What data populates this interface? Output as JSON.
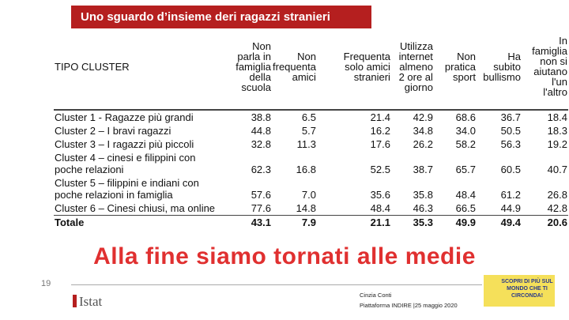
{
  "header": {
    "title": "Uno sguardo d’insieme deri ragazzi stranieri"
  },
  "table": {
    "columns": [
      [
        "TIPO CLUSTER"
      ],
      [
        "Non",
        "parla in",
        "famiglia",
        "della",
        "scuola"
      ],
      [
        "Non",
        "frequenta",
        "amici"
      ],
      [
        "Frequenta",
        "solo amici",
        "stranieri"
      ],
      [
        "Utilizza",
        "internet",
        "almeno",
        "2 ore al",
        "giorno"
      ],
      [
        "Non",
        "pratica",
        "sport"
      ],
      [
        "Ha",
        "subito",
        "bullismo"
      ],
      [
        "In",
        "famiglia",
        "non si",
        "aiutano",
        "l'un",
        "l'altro"
      ]
    ],
    "rows": [
      [
        "Cluster 1  - Ragazze più grandi",
        "38.8",
        "6.5",
        "21.4",
        "42.9",
        "68.6",
        "36.7",
        "18.4"
      ],
      [
        "Cluster 2 – I bravi ragazzi",
        "44.8",
        "5.7",
        "16.2",
        "34.8",
        "34.0",
        "50.5",
        "18.3"
      ],
      [
        "Cluster 3 – I ragazzi più piccoli",
        "32.8",
        "11.3",
        "17.6",
        "26.2",
        "58.2",
        "56.3",
        "19.2"
      ],
      [
        "Cluster 4 – cinesi e filippini con poche relazioni",
        "62.3",
        "16.8",
        "52.5",
        "38.7",
        "65.7",
        "60.5",
        "40.7"
      ],
      [
        "Cluster 5 – filippini e indiani con poche relazioni in famiglia",
        "57.6",
        "7.0",
        "35.6",
        "35.8",
        "48.4",
        "61.2",
        "26.8"
      ],
      [
        "Cluster 6 – Cinesi chiusi, ma online",
        "77.6",
        "14.8",
        "48.4",
        "46.3",
        "66.5",
        "44.9",
        "42.8"
      ],
      [
        "Totale",
        "43.1",
        "7.9",
        "21.1",
        "35.3",
        "49.9",
        "49.4",
        "20.6"
      ]
    ]
  },
  "headline": "Alla fine siamo tornati alle medie",
  "page_number": "19",
  "logo": "Istat",
  "badge": "SCOPRI DI PIÙ SUL MONDO CHE TI CIRCONDA!",
  "footer": {
    "author": "Cinzia Conti",
    "event": "Piattaforma INDIRE |25 maggio 2020"
  }
}
